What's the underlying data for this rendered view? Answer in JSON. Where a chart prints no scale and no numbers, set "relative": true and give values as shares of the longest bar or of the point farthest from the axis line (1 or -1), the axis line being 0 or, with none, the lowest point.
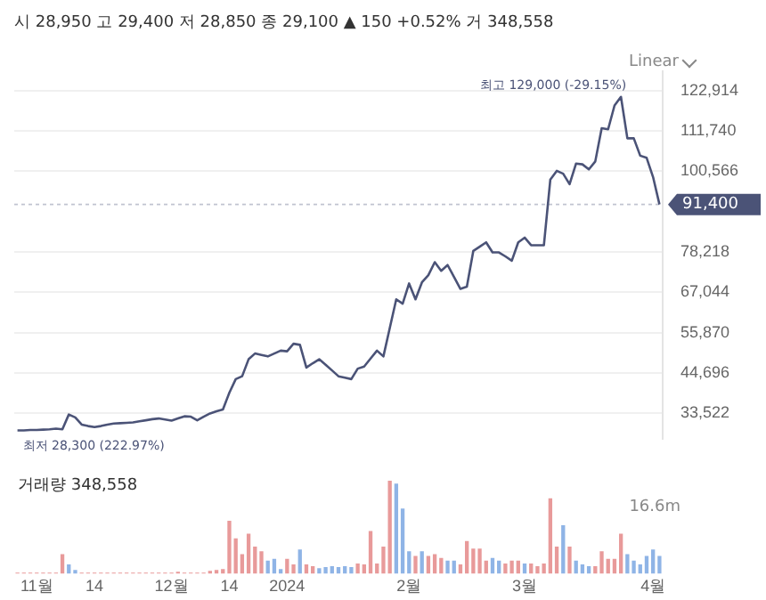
{
  "chart_data": [
    {
      "type": "line",
      "title": "시 28,950 고 29,400 저 28,850 종 29,100 ▲ 150 +0.52% 거 348,558",
      "categories": [
        null,
        null,
        null,
        null,
        null,
        null,
        null,
        null,
        null,
        null,
        null,
        null,
        null,
        null,
        null,
        null,
        null,
        null,
        null,
        null,
        null,
        null,
        null,
        null,
        null,
        null,
        null,
        null,
        null,
        null,
        null,
        null,
        null,
        null,
        null,
        null,
        null,
        null,
        null,
        null,
        null,
        null,
        null,
        null,
        null,
        null,
        null,
        null,
        null,
        null,
        null,
        null,
        null,
        null,
        null,
        null,
        null,
        null,
        null,
        null,
        null,
        null,
        null,
        null,
        null,
        null,
        null,
        null,
        null,
        null,
        null,
        null,
        null,
        null,
        null,
        null,
        null,
        null,
        null,
        null,
        null,
        null,
        null,
        null,
        null,
        null,
        null,
        null,
        null,
        null,
        null,
        null,
        null,
        null,
        null,
        null,
        null,
        null,
        null,
        null,
        null
      ],
      "values": [
        28800,
        28800,
        28900,
        28900,
        29000,
        29100,
        29300,
        29100,
        33200,
        32400,
        30400,
        30000,
        29700,
        30000,
        30400,
        30700,
        30800,
        30900,
        31000,
        31300,
        31600,
        31900,
        32100,
        31800,
        31500,
        32100,
        32700,
        32600,
        31600,
        32600,
        33500,
        34100,
        34600,
        39200,
        43000,
        43800,
        48500,
        50100,
        49700,
        49300,
        50100,
        50900,
        50700,
        52800,
        52500,
        46200,
        47400,
        48500,
        47000,
        45400,
        43800,
        43400,
        43000,
        45900,
        46500,
        48700,
        50900,
        49300,
        57200,
        65100,
        63900,
        69500,
        65100,
        69800,
        71800,
        75400,
        73000,
        74600,
        71300,
        68000,
        68600,
        78500,
        79700,
        80900,
        78100,
        78100,
        77000,
        75800,
        80900,
        82200,
        80100,
        80100,
        80100,
        98300,
        100700,
        99900,
        97000,
        102700,
        102500,
        101100,
        103300,
        112500,
        112200,
        118800,
        121200,
        109700,
        109700,
        104900,
        104300,
        99000,
        91400
      ],
      "color": "#4b5377",
      "ylim": [
        26400,
        128300
      ],
      "yticks": [
        {
          "value": 33522,
          "label": "33,522"
        },
        {
          "value": 44696,
          "label": "44,696"
        },
        {
          "value": 55870,
          "label": "55,870"
        },
        {
          "value": 67044,
          "label": "67,044"
        },
        {
          "value": 78218,
          "label": "78,218"
        },
        {
          "value": 100566,
          "label": "100,566"
        },
        {
          "value": 111740,
          "label": "111,740"
        },
        {
          "value": 122914,
          "label": "122,914"
        }
      ],
      "tick_labels": "y",
      "grid": "y",
      "ref_lines": [
        {
          "axis": "y",
          "value": 91400,
          "label": "91,400",
          "color": "#4b5377"
        }
      ],
      "annotations": [
        "최고 129,000 (-29.15%)",
        "최저 28,300 (222.97%)",
        "Linear"
      ]
    },
    {
      "type": "bar",
      "title": "거래량 348,558",
      "relative": true,
      "categories": [
        null,
        null,
        null,
        "11월",
        null,
        null,
        null,
        null,
        null,
        null,
        null,
        null,
        "14",
        null,
        null,
        null,
        null,
        null,
        null,
        null,
        null,
        null,
        null,
        null,
        "12월",
        null,
        null,
        null,
        null,
        null,
        null,
        null,
        null,
        "14",
        null,
        null,
        null,
        null,
        null,
        null,
        null,
        null,
        "2024",
        null,
        null,
        null,
        null,
        null,
        null,
        null,
        null,
        null,
        null,
        null,
        null,
        null,
        null,
        null,
        null,
        null,
        null,
        "2월",
        null,
        null,
        null,
        null,
        null,
        null,
        null,
        null,
        null,
        null,
        null,
        null,
        null,
        null,
        null,
        null,
        null,
        "3월",
        null,
        null,
        null,
        null,
        null,
        null,
        null,
        null,
        null,
        null,
        null,
        null,
        null,
        null,
        null,
        null,
        null,
        null,
        null,
        "4월",
        null
      ],
      "values": [
        0.01,
        0.01,
        0.01,
        0.01,
        0.01,
        0.01,
        0.01,
        0.21,
        0.1,
        0.04,
        0.01,
        0.01,
        0.01,
        0.01,
        0.01,
        0.01,
        0.01,
        0.01,
        0.01,
        0.01,
        0.01,
        0.01,
        0.01,
        0.01,
        0.01,
        0.02,
        0.01,
        0.01,
        0.01,
        0.01,
        0.03,
        0.04,
        0.05,
        0.57,
        0.38,
        0.21,
        0.43,
        0.29,
        0.24,
        0.14,
        0.16,
        0.05,
        0.16,
        0.1,
        0.26,
        0.1,
        0.08,
        0.06,
        0.07,
        0.08,
        0.07,
        0.08,
        0.07,
        0.11,
        0.1,
        0.46,
        0.11,
        0.29,
        1,
        0.97,
        0.7,
        0.24,
        0.19,
        0.24,
        0.19,
        0.21,
        0.17,
        0.14,
        0.14,
        0.1,
        0.35,
        0.27,
        0.27,
        0.14,
        0.17,
        0.14,
        0.11,
        0.14,
        0.14,
        0.11,
        0.11,
        0.08,
        0.11,
        0.81,
        0.29,
        0.52,
        0.29,
        0.14,
        0.1,
        0.08,
        0.08,
        0.24,
        0.16,
        0.16,
        0.43,
        0.21,
        0.14,
        0.1,
        0.19,
        0.26,
        0.19
      ],
      "colors": [
        "#e89a9a",
        "#e89a9a",
        "#e89a9a",
        "#e89a9a",
        "#e89a9a",
        "#e89a9a",
        "#e89a9a",
        "#e89a9a",
        "#8fb4e6",
        "#8fb4e6",
        "#e89a9a",
        "#e89a9a",
        "#e89a9a",
        "#e89a9a",
        "#e89a9a",
        "#e89a9a",
        "#e89a9a",
        "#e89a9a",
        "#e89a9a",
        "#e89a9a",
        "#e89a9a",
        "#e89a9a",
        "#e89a9a",
        "#e89a9a",
        "#e89a9a",
        "#e89a9a",
        "#e89a9a",
        "#e89a9a",
        "#e89a9a",
        "#e89a9a",
        "#e89a9a",
        "#e89a9a",
        "#e89a9a",
        "#e89a9a",
        "#e89a9a",
        "#e89a9a",
        "#e89a9a",
        "#e89a9a",
        "#e89a9a",
        "#8fb4e6",
        "#8fb4e6",
        "#8fb4e6",
        "#e89a9a",
        "#e89a9a",
        "#8fb4e6",
        "#e89a9a",
        "#e89a9a",
        "#8fb4e6",
        "#8fb4e6",
        "#8fb4e6",
        "#8fb4e6",
        "#8fb4e6",
        "#8fb4e6",
        "#e89a9a",
        "#e89a9a",
        "#e89a9a",
        "#e89a9a",
        "#e89a9a",
        "#e89a9a",
        "#8fb4e6",
        "#8fb4e6",
        "#8fb4e6",
        "#e89a9a",
        "#8fb4e6",
        "#e89a9a",
        "#e89a9a",
        "#e89a9a",
        "#8fb4e6",
        "#8fb4e6",
        "#e89a9a",
        "#e89a9a",
        "#e89a9a",
        "#e89a9a",
        "#e89a9a",
        "#8fb4e6",
        "#8fb4e6",
        "#e89a9a",
        "#e89a9a",
        "#e89a9a",
        "#8fb4e6",
        "#e89a9a",
        "#e89a9a",
        "#e89a9a",
        "#e89a9a",
        "#e89a9a",
        "#8fb4e6",
        "#e89a9a",
        "#8fb4e6",
        "#8fb4e6",
        "#8fb4e6",
        "#e89a9a",
        "#e89a9a",
        "#e89a9a",
        "#e89a9a",
        "#e89a9a",
        "#8fb4e6",
        "#8fb4e6",
        "#8fb4e6",
        "#8fb4e6",
        "#8fb4e6",
        "#8fb4e6"
      ],
      "tick_labels": "x",
      "annotations": [
        "16.6m"
      ]
    }
  ]
}
